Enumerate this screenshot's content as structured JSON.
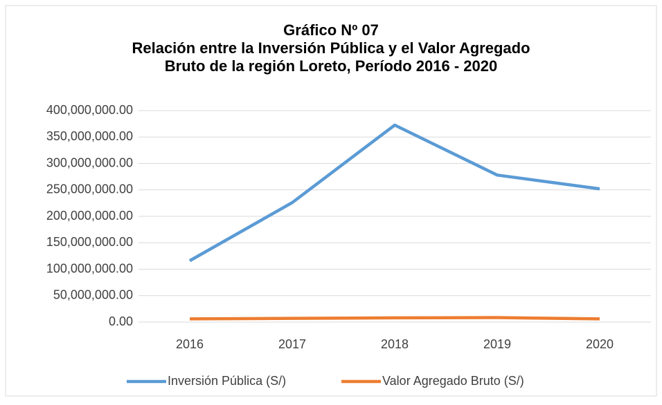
{
  "chart_data": {
    "type": "line",
    "title": [
      "Gráfico  Nº 07",
      "Relación entre la Inversión Pública y el Valor Agregado",
      "Bruto de la región Loreto, Período 2016 - 2020"
    ],
    "categories": [
      "2016",
      "2017",
      "2018",
      "2019",
      "2020"
    ],
    "series": [
      {
        "name": "Inversión Pública (S/)",
        "color": "#5b9bd5",
        "values": [
          116000000,
          226000000,
          372500000,
          278000000,
          252000000
        ]
      },
      {
        "name": "Valor Agregado Bruto (S/)",
        "color": "#ed7d31",
        "values": [
          6000000,
          7000000,
          8000000,
          8500000,
          6000000
        ]
      }
    ],
    "ylim": [
      0,
      400000000
    ],
    "yticks": [
      {
        "value": 0,
        "label": "0.00"
      },
      {
        "value": 50000000,
        "label": "50,000,000.00"
      },
      {
        "value": 100000000,
        "label": "100,000,000.00"
      },
      {
        "value": 150000000,
        "label": "150,000,000.00"
      },
      {
        "value": 200000000,
        "label": "200,000,000.00"
      },
      {
        "value": 250000000,
        "label": "250,000,000.00"
      },
      {
        "value": 300000000,
        "label": "300,000,000.00"
      },
      {
        "value": 350000000,
        "label": "350,000,000.00"
      },
      {
        "value": 400000000,
        "label": "400,000,000.00"
      }
    ],
    "grid": true,
    "legend": "bottom"
  }
}
